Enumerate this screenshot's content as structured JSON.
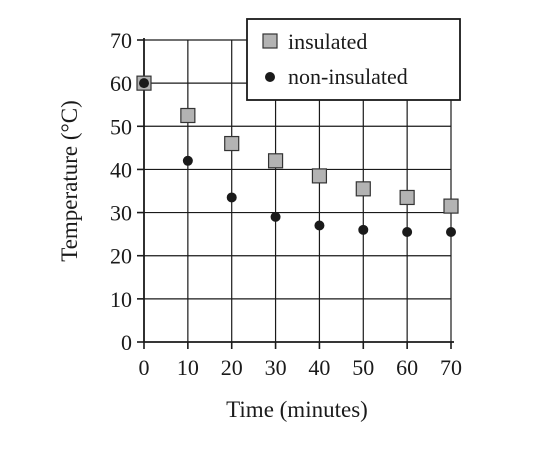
{
  "chart_data": {
    "type": "scatter",
    "xlabel": "Time (minutes)",
    "ylabel": "Temperature (°C)",
    "xlim": [
      0,
      70
    ],
    "ylim": [
      0,
      70
    ],
    "x_ticks": [
      "0",
      "10",
      "20",
      "30",
      "40",
      "50",
      "60",
      "70"
    ],
    "y_ticks": [
      "0",
      "10",
      "20",
      "30",
      "40",
      "50",
      "60",
      "70"
    ],
    "grid": true,
    "legend_position": "top-right",
    "series": [
      {
        "name": "insulated",
        "marker": "square",
        "color": "#b3b3b3",
        "x": [
          0,
          10,
          20,
          30,
          40,
          50,
          60,
          70
        ],
        "y": [
          60,
          52.5,
          46,
          42,
          38.5,
          35.5,
          33.5,
          31.5
        ]
      },
      {
        "name": "non-insulated",
        "marker": "circle",
        "color": "#1a1a1a",
        "x": [
          0,
          10,
          20,
          30,
          40,
          50,
          60,
          70
        ],
        "y": [
          60,
          42,
          33.5,
          29,
          27,
          26,
          25.5,
          25.5
        ]
      }
    ]
  }
}
